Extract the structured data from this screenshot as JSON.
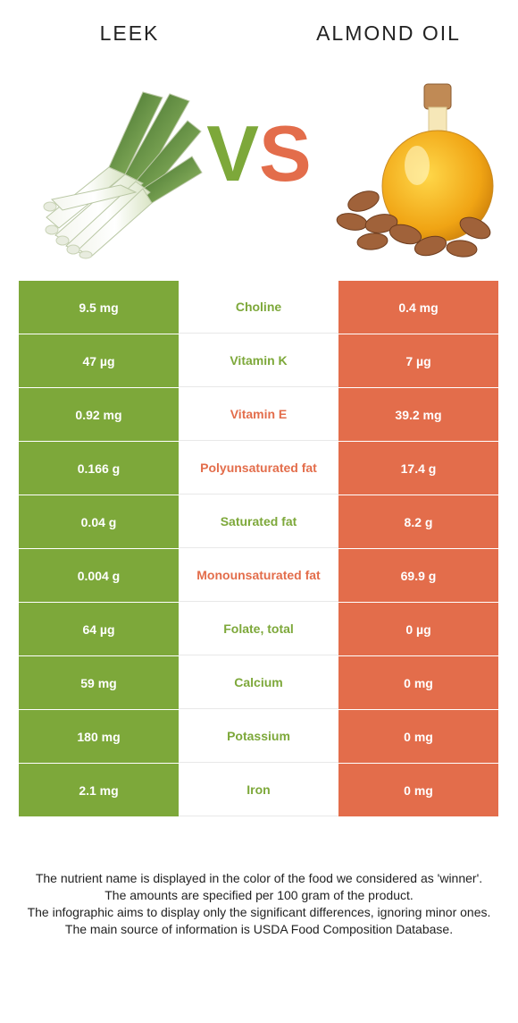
{
  "header": {
    "left_food": "LEEK",
    "right_food": "ALMOND OIL"
  },
  "vs": {
    "v": "V",
    "s": "S"
  },
  "colors": {
    "left": "#7da83a",
    "right": "#e36d4b"
  },
  "rows": [
    {
      "left": "9.5 mg",
      "nutrient": "Choline",
      "right": "0.4 mg",
      "winner": "left"
    },
    {
      "left": "47 µg",
      "nutrient": "Vitamin K",
      "right": "7 µg",
      "winner": "left"
    },
    {
      "left": "0.92 mg",
      "nutrient": "Vitamin E",
      "right": "39.2 mg",
      "winner": "right"
    },
    {
      "left": "0.166 g",
      "nutrient": "Polyunsaturated fat",
      "right": "17.4 g",
      "winner": "right"
    },
    {
      "left": "0.04 g",
      "nutrient": "Saturated fat",
      "right": "8.2 g",
      "winner": "left"
    },
    {
      "left": "0.004 g",
      "nutrient": "Monounsaturated fat",
      "right": "69.9 g",
      "winner": "right"
    },
    {
      "left": "64 µg",
      "nutrient": "Folate, total",
      "right": "0 µg",
      "winner": "left"
    },
    {
      "left": "59 mg",
      "nutrient": "Calcium",
      "right": "0 mg",
      "winner": "left"
    },
    {
      "left": "180 mg",
      "nutrient": "Potassium",
      "right": "0 mg",
      "winner": "left"
    },
    {
      "left": "2.1 mg",
      "nutrient": "Iron",
      "right": "0 mg",
      "winner": "left"
    }
  ],
  "footnote": [
    "The nutrient name is displayed in the color of the food we considered as 'winner'.",
    "The amounts are specified per 100 gram of the product.",
    "The infographic aims to display only the significant differences, ignoring minor ones.",
    "The main source of information is USDA Food Composition Database."
  ]
}
